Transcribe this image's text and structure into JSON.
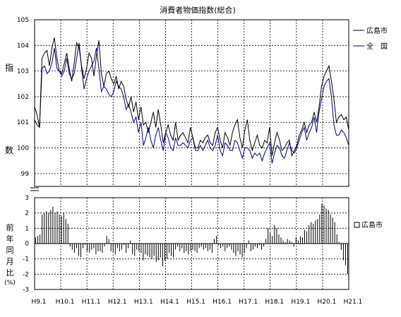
{
  "chart_data": {
    "title": "消費者物価指数(総合)",
    "x_tick_labels": [
      "H9.1",
      "H10.1",
      "H11.1",
      "H12.1",
      "H13.1",
      "H14.1",
      "H15.1",
      "H16.1",
      "H17.1",
      "H18.1",
      "H19.1",
      "H20.1",
      "H21.1"
    ],
    "upper": {
      "type": "line",
      "ylabel": "指\n数",
      "ylim": [
        98.5,
        105
      ],
      "yticks": [
        "99",
        "100",
        "101",
        "102",
        "103",
        "104",
        "105"
      ],
      "grid": true,
      "legend_position": "right",
      "series": [
        {
          "name": "広島市",
          "color": "#000000",
          "values": [
            101.6,
            101.3,
            100.8,
            103.5,
            103.7,
            103.8,
            103.2,
            103.9,
            104.3,
            103.5,
            103.0,
            102.9,
            103.3,
            103.7,
            103.1,
            102.6,
            103.3,
            104.1,
            103.9,
            103.2,
            102.7,
            103.1,
            103.7,
            103.5,
            102.8,
            103.6,
            104.2,
            102.9,
            102.4,
            102.9,
            103.0,
            102.7,
            102.5,
            102.8,
            102.3,
            102.6,
            102.4,
            101.9,
            101.6,
            102.0,
            101.4,
            101.8,
            101.1,
            101.6,
            100.9,
            101.0,
            100.6,
            101.0,
            101.4,
            100.8,
            101.5,
            100.9,
            100.2,
            100.6,
            100.9,
            100.5,
            100.3,
            101.0,
            100.3,
            100.5,
            100.6,
            100.4,
            100.2,
            100.8,
            100.4,
            100.0,
            100.0,
            100.3,
            100.2,
            100.4,
            100.5,
            100.2,
            100.1,
            100.6,
            100.8,
            100.3,
            100.0,
            100.6,
            100.4,
            100.1,
            100.6,
            100.9,
            101.1,
            100.4,
            100.0,
            100.7,
            101.1,
            100.3,
            99.9,
            100.2,
            100.5,
            100.1,
            100.0,
            100.3,
            100.2,
            100.8,
            99.7,
            100.2,
            100.6,
            100.3,
            99.9,
            100.0,
            100.2,
            100.3,
            99.7,
            99.9,
            100.1,
            100.5,
            100.7,
            101.0,
            100.6,
            100.9,
            101.0,
            101.4,
            101.0,
            101.6,
            102.4,
            102.8,
            103.0,
            103.2,
            102.6,
            101.9,
            101.0,
            101.2,
            101.3,
            101.1,
            101.2,
            100.7
          ]
        },
        {
          "name": "全　国",
          "color": "#000080",
          "values": [
            101.1,
            100.9,
            100.8,
            103.1,
            103.2,
            102.9,
            103.0,
            103.3,
            103.9,
            103.1,
            103.0,
            102.8,
            103.0,
            103.5,
            102.9,
            102.7,
            102.9,
            103.5,
            104.1,
            103.1,
            102.3,
            102.7,
            103.0,
            103.2,
            103.4,
            103.9,
            103.1,
            102.2,
            102.4,
            102.3,
            102.1,
            102.0,
            102.2,
            102.6,
            102.4,
            102.3,
            102.0,
            101.5,
            101.7,
            101.4,
            101.0,
            101.2,
            100.6,
            101.0,
            100.1,
            100.4,
            100.8,
            100.3,
            100.0,
            100.5,
            100.8,
            100.3,
            99.9,
            100.6,
            100.4,
            100.0,
            99.9,
            100.4,
            100.1,
            100.1,
            100.2,
            100.1,
            100.0,
            100.3,
            100.4,
            99.9,
            99.9,
            100.1,
            99.9,
            100.1,
            100.3,
            100.0,
            99.9,
            100.1,
            100.5,
            99.9,
            99.7,
            100.2,
            100.1,
            99.9,
            99.9,
            100.3,
            100.2,
            99.9,
            99.6,
            100.0,
            100.0,
            99.9,
            99.6,
            99.8,
            99.7,
            99.8,
            99.5,
            99.8,
            100.0,
            100.2,
            99.4,
            99.8,
            100.1,
            100.0,
            99.7,
            99.6,
            99.9,
            100.2,
            99.9,
            99.8,
            100.0,
            100.3,
            100.6,
            100.8,
            100.3,
            100.6,
            100.8,
            101.2,
            100.6,
            101.4,
            101.9,
            102.4,
            102.6,
            102.7,
            102.0,
            100.9,
            100.5,
            100.5,
            100.7,
            100.6,
            100.4,
            100.1
          ]
        }
      ]
    },
    "lower": {
      "type": "bar",
      "ylabel": "前\n年\n同\n月\n比",
      "unit": "(%)",
      "ylim": [
        -3,
        3
      ],
      "yticks": [
        "-3",
        "-2",
        "-1",
        "0",
        "1",
        "2",
        "3"
      ],
      "grid": true,
      "legend_position": "right",
      "series": [
        {
          "name": "広島市",
          "color": "#000000",
          "values": [
            0.4,
            0.5,
            0.6,
            1.9,
            2.0,
            2.1,
            2.0,
            2.2,
            2.4,
            2.0,
            2.1,
            1.9,
            1.8,
            2.0,
            1.6,
            1.3,
            -0.2,
            -0.4,
            -0.6,
            -0.3,
            -0.8,
            -0.9,
            -0.3,
            -0.1,
            -0.5,
            -0.6,
            -0.4,
            -0.3,
            -0.7,
            -0.5,
            -0.5,
            -0.6,
            -0.2,
            0.5,
            0.3,
            -0.5,
            -0.6,
            -0.7,
            -0.3,
            -0.5,
            -0.4,
            -0.1,
            -0.6,
            -0.3,
            0.2,
            -0.7,
            -0.8,
            -0.4,
            -0.5,
            -0.6,
            -1.1,
            -0.7,
            -0.8,
            -0.9,
            -1.0,
            -0.8,
            -1.2,
            -1.1,
            -0.9,
            -1.5,
            -1.1,
            -1.0,
            -0.6,
            -0.8,
            -0.9,
            -0.4,
            -0.2,
            -0.5,
            -0.3,
            -0.6,
            -0.5,
            -0.7,
            -0.5,
            -0.4,
            -0.5,
            -0.6,
            -0.3,
            -0.2,
            -0.4,
            -0.3,
            -0.5,
            -0.4,
            -0.6,
            0.3,
            0.5,
            -0.1,
            -0.3,
            -0.2,
            -0.5,
            -0.3,
            -0.2,
            -0.4,
            -0.6,
            -0.8,
            -0.5,
            -0.7,
            -0.9,
            -0.6,
            -0.3,
            0.2,
            -0.5,
            -0.4,
            -0.2,
            -0.3,
            -0.1,
            -0.4,
            -0.2,
            0.3,
            1.0,
            0.7,
            0.5,
            1.2,
            1.0,
            0.6,
            0.4,
            0.2,
            0.1,
            0.3,
            0.2,
            0.1,
            -0.2,
            0.4,
            0.2,
            0.5,
            0.4,
            0.9,
            0.8,
            1.2,
            1.4,
            1.3,
            1.5,
            1.6,
            1.9,
            2.6,
            2.5,
            2.3,
            2.2,
            1.9,
            1.7,
            1.4,
            0.6,
            0.1,
            -0.4,
            -1.1,
            -1.4,
            -2.0
          ]
        }
      ]
    }
  }
}
